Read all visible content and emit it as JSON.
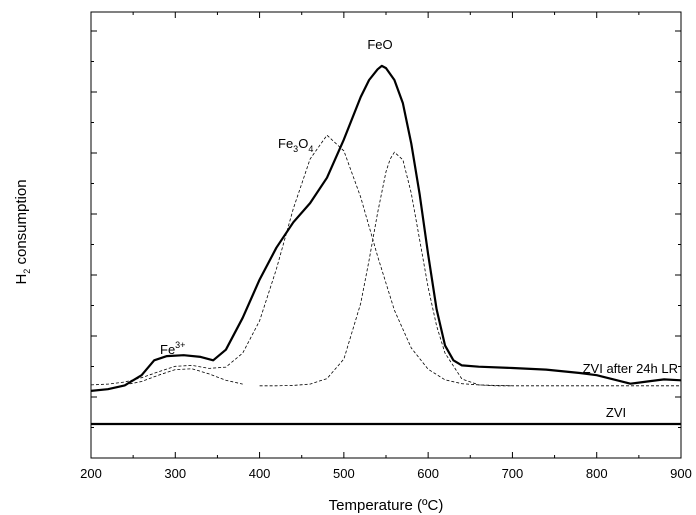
{
  "chart_data": {
    "type": "line",
    "xlabel": "Temperature (ºC)",
    "ylabel": "H₂ consumption",
    "xlim": [
      200,
      900
    ],
    "xticks": [
      "200",
      "300",
      "400",
      "500",
      "600",
      "700",
      "800",
      "900"
    ],
    "yticks_labeled": false,
    "grid": false,
    "series": [
      {
        "name": "ZVI after 24h LR",
        "style": "solid-thick",
        "x": [
          200,
          220,
          240,
          260,
          275,
          290,
          310,
          330,
          345,
          360,
          380,
          400,
          420,
          440,
          460,
          480,
          500,
          520,
          530,
          540,
          545,
          550,
          560,
          570,
          580,
          590,
          600,
          610,
          620,
          630,
          640,
          660,
          700,
          740,
          780,
          800,
          820,
          840,
          860,
          880,
          900
        ],
        "y": [
          0.058,
          0.062,
          0.071,
          0.095,
          0.13,
          0.14,
          0.142,
          0.138,
          0.13,
          0.155,
          0.23,
          0.32,
          0.395,
          0.455,
          0.5,
          0.56,
          0.65,
          0.75,
          0.79,
          0.815,
          0.823,
          0.818,
          0.79,
          0.735,
          0.64,
          0.52,
          0.38,
          0.25,
          0.165,
          0.13,
          0.118,
          0.115,
          0.112,
          0.108,
          0.1,
          0.095,
          0.085,
          0.075,
          0.08,
          0.085,
          0.083
        ]
      },
      {
        "name": "ZVI",
        "style": "solid-thick",
        "x": [
          200,
          900
        ],
        "y": [
          -0.02,
          -0.02
        ]
      },
      {
        "name": "",
        "style": "dashed-fit",
        "x": [
          200,
          220,
          240,
          260,
          280,
          300,
          320,
          340,
          360,
          380,
          400,
          420,
          440,
          460,
          480,
          500,
          520,
          540,
          560,
          580,
          600,
          620,
          640,
          660,
          680,
          700,
          720,
          740,
          760,
          780,
          800,
          820,
          840,
          860,
          880,
          900
        ],
        "y": [
          0.072,
          0.074,
          0.079,
          0.089,
          0.103,
          0.116,
          0.118,
          0.111,
          0.114,
          0.147,
          0.223,
          0.345,
          0.487,
          0.604,
          0.66,
          0.623,
          0.514,
          0.375,
          0.248,
          0.159,
          0.109,
          0.084,
          0.075,
          0.072,
          0.071,
          0.07,
          0.07,
          0.07,
          0.07,
          0.07,
          0.07,
          0.07,
          0.07,
          0.07,
          0.07,
          0.07
        ]
      },
      {
        "name": "",
        "style": "dashed-fit",
        "x": [
          400,
          420,
          440,
          460,
          480,
          500,
          520,
          530,
          540,
          550,
          555,
          560,
          570,
          580,
          590,
          600,
          610,
          620,
          640,
          660,
          680,
          700
        ],
        "y": [
          0.07,
          0.07,
          0.071,
          0.074,
          0.087,
          0.133,
          0.264,
          0.366,
          0.477,
          0.574,
          0.604,
          0.62,
          0.602,
          0.523,
          0.413,
          0.302,
          0.211,
          0.147,
          0.086,
          0.072,
          0.07,
          0.07
        ]
      },
      {
        "name": "",
        "style": "dashed-fit",
        "x": [
          240,
          260,
          280,
          300,
          320,
          340,
          360,
          380
        ],
        "y": [
          0.072,
          0.08,
          0.095,
          0.108,
          0.11,
          0.098,
          0.083,
          0.074
        ]
      }
    ],
    "annotations": {
      "feo": "FeO",
      "fe3o4": {
        "main": "Fe",
        "sub1": "3",
        "mid": "O",
        "sub2": "4"
      },
      "fe3plus": {
        "main": "Fe",
        "sup": "3+"
      },
      "zvi_after": "ZVI after 24h LR",
      "zvi": "ZVI"
    },
    "ylabel_parts": {
      "main1": "H",
      "sub": "2",
      "main2": " consumption"
    }
  }
}
